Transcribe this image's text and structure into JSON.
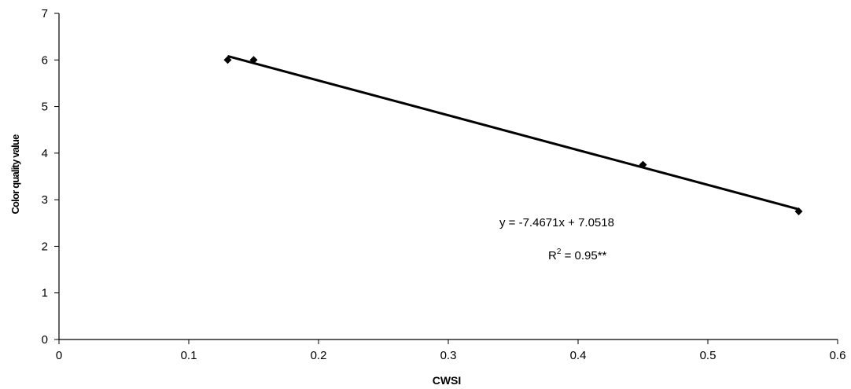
{
  "chart_data": {
    "type": "scatter",
    "title": "",
    "xlabel": "CWSI",
    "ylabel": "Color quality value",
    "xlim": [
      0,
      0.6
    ],
    "ylim": [
      0,
      7
    ],
    "xticks": [
      "0",
      "0.1",
      "0.2",
      "0.3",
      "0.4",
      "0.5",
      "0.6"
    ],
    "yticks": [
      "0",
      "1",
      "2",
      "3",
      "4",
      "5",
      "6",
      "7"
    ],
    "grid": false,
    "legend": "none",
    "series": [
      {
        "points": [
          {
            "x": 0.13,
            "y": 6.0
          },
          {
            "x": 0.15,
            "y": 6.0
          },
          {
            "x": 0.45,
            "y": 3.75
          },
          {
            "x": 0.57,
            "y": 2.75
          }
        ],
        "marker": "diamond",
        "color": "#000000"
      }
    ],
    "trendline": {
      "slope": -7.4671,
      "intercept": 7.0518,
      "x_range": [
        0.13,
        0.57
      ],
      "color": "#000000"
    },
    "annotations": {
      "equation": "y = -7.4671x + 7.0518",
      "r2_prefix": "R",
      "r2_sup": "2",
      "r2_suffix": " = 0.95**"
    }
  }
}
